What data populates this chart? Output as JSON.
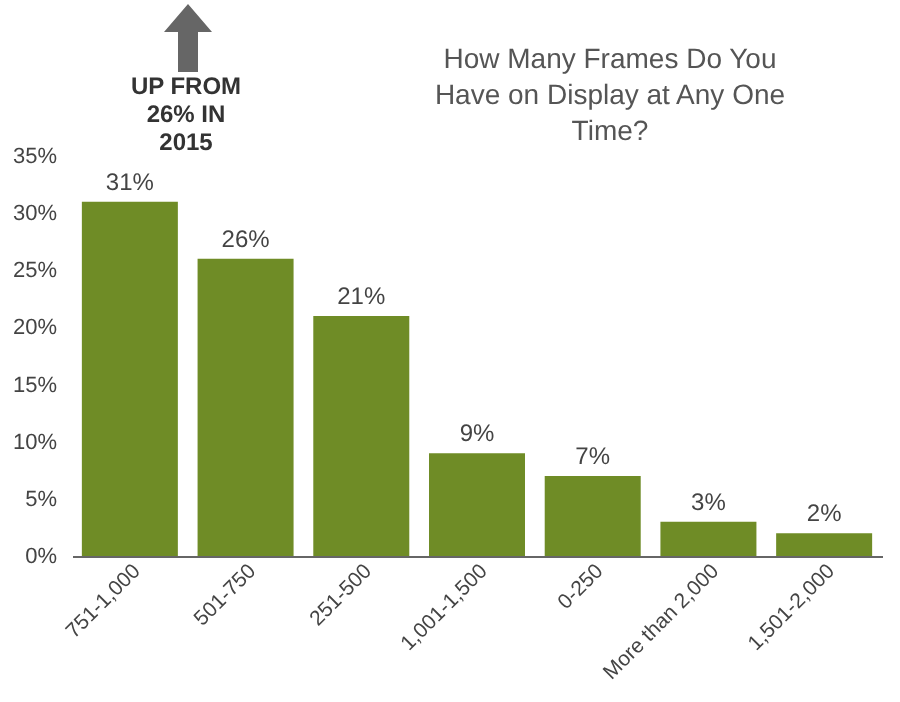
{
  "chart_data": {
    "type": "bar",
    "title": "How Many Frames Do You Have on Display at Any One Time?",
    "categories": [
      "751-1,000",
      "501-750",
      "251-500",
      "1,001-1,500",
      "0-250",
      "More than 2,000",
      "1,501-2,000"
    ],
    "values": [
      31,
      26,
      21,
      9,
      7,
      3,
      2
    ],
    "value_labels": [
      "31%",
      "26%",
      "21%",
      "9%",
      "7%",
      "3%",
      "2%"
    ],
    "color": "#6f8c26",
    "ylim": [
      0,
      35
    ],
    "yticks": [
      {
        "value": 0,
        "label": "0%"
      },
      {
        "value": 5,
        "label": "5%"
      },
      {
        "value": 10,
        "label": "10%"
      },
      {
        "value": 15,
        "label": "15%"
      },
      {
        "value": 20,
        "label": "20%"
      },
      {
        "value": 25,
        "label": "25%"
      },
      {
        "value": 30,
        "label": "30%"
      },
      {
        "value": 35,
        "label": "35%"
      }
    ],
    "annotations": [
      "UP FROM 26% IN 2015"
    ]
  }
}
